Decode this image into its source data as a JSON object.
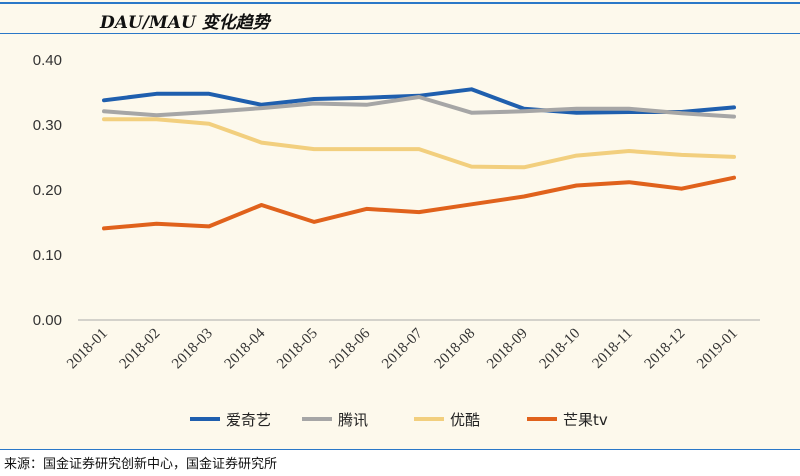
{
  "title": "DAU/MAU 变化趋势",
  "source": "来源：国金证券研究创新中心，国金证券研究所",
  "colors": {
    "title_rule": "#2a78c8",
    "panel_background": "#fdf9ec",
    "axis": "#aaaaaa"
  },
  "chart_data": {
    "type": "line",
    "title": "DAU/MAU 变化趋势",
    "xlabel": "",
    "ylabel": "",
    "categories": [
      "2018-01",
      "2018-02",
      "2018-03",
      "2018-04",
      "2018-05",
      "2018-06",
      "2018-07",
      "2018-08",
      "2018-09",
      "2018-10",
      "2018-11",
      "2018-12",
      "2019-01"
    ],
    "ylim": [
      0,
      0.4
    ],
    "yticks": [
      "0.00",
      "0.10",
      "0.20",
      "0.30",
      "0.40"
    ],
    "grid": false,
    "legend_position": "bottom",
    "series": [
      {
        "name": "爱奇艺",
        "color": "#1f5fae",
        "values": [
          0.338,
          0.348,
          0.348,
          0.331,
          0.34,
          0.342,
          0.345,
          0.355,
          0.325,
          0.319,
          0.32,
          0.32,
          0.327
        ]
      },
      {
        "name": "腾讯",
        "color": "#a6a6a6",
        "values": [
          0.321,
          0.315,
          0.32,
          0.326,
          0.333,
          0.331,
          0.343,
          0.319,
          0.321,
          0.325,
          0.325,
          0.318,
          0.313
        ]
      },
      {
        "name": "优酷",
        "color": "#f2cf7e",
        "values": [
          0.309,
          0.309,
          0.302,
          0.273,
          0.263,
          0.263,
          0.263,
          0.236,
          0.235,
          0.253,
          0.26,
          0.254,
          0.251
        ]
      },
      {
        "name": "芒果tv",
        "color": "#e0621c",
        "values": [
          0.141,
          0.148,
          0.144,
          0.177,
          0.151,
          0.171,
          0.166,
          0.178,
          0.19,
          0.207,
          0.212,
          0.202,
          0.219
        ]
      }
    ]
  }
}
